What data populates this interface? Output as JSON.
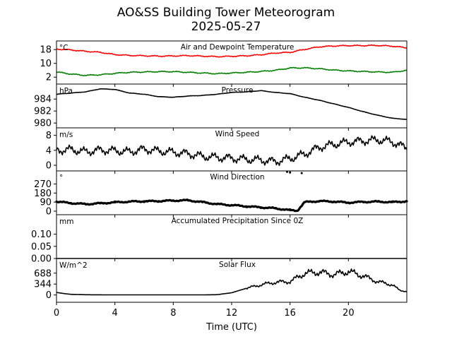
{
  "figure": {
    "title": "AO&SS Building Tower Meteorogram",
    "subtitle": "2025-05-27",
    "xlabel": "Time (UTC)"
  },
  "chart_data": [
    {
      "type": "line",
      "title": "Air and Dewpoint Temperature",
      "unit": "°C",
      "yticks": [
        2,
        10,
        18
      ],
      "ylim": [
        -2,
        23
      ],
      "xlim": [
        0,
        24
      ],
      "xticks": [
        0,
        4,
        8,
        12,
        16,
        20
      ],
      "series": [
        {
          "color": "#ff0000",
          "x": [
            0,
            1,
            2,
            3,
            4,
            5,
            6,
            7,
            8,
            9,
            10,
            11,
            12,
            13,
            14,
            15,
            16,
            17,
            18,
            19,
            20,
            21,
            22,
            23,
            24
          ],
          "values": [
            18.3,
            17.8,
            17.0,
            16.4,
            15.1,
            14.6,
            14.4,
            14.2,
            14.3,
            14.5,
            14.2,
            13.9,
            14.1,
            14.4,
            15.0,
            16.0,
            16.4,
            18.1,
            19.6,
            20.1,
            20.3,
            20.3,
            20.4,
            20.0,
            19.0
          ]
        },
        {
          "color": "#008000",
          "x": [
            0,
            1,
            2,
            3,
            4,
            5,
            6,
            7,
            8,
            9,
            10,
            11,
            12,
            13,
            14,
            15,
            16,
            17,
            18,
            19,
            20,
            21,
            22,
            23,
            24
          ],
          "values": [
            5.0,
            3.8,
            3.0,
            3.4,
            4.2,
            4.8,
            5.0,
            5.2,
            5.2,
            4.8,
            4.4,
            4.0,
            4.4,
            4.8,
            5.3,
            6.0,
            7.3,
            7.4,
            6.9,
            6.1,
            5.6,
            5.3,
            5.0,
            4.8,
            6.0
          ]
        }
      ]
    },
    {
      "type": "line",
      "title": "Pressure",
      "unit": "hPa",
      "yticks": [
        980,
        982,
        984
      ],
      "ylim": [
        979.2,
        986.5
      ],
      "xlim": [
        0,
        24
      ],
      "series": [
        {
          "color": "#000000",
          "x": [
            0,
            1,
            2,
            3,
            4,
            5,
            6,
            7,
            8,
            9,
            10,
            11,
            12,
            13,
            14,
            15,
            16,
            17,
            18,
            19,
            20,
            21,
            22,
            23,
            24
          ],
          "values": [
            984.8,
            985.0,
            985.2,
            985.7,
            985.6,
            985.0,
            984.8,
            984.4,
            984.3,
            984.5,
            984.6,
            984.8,
            985.1,
            985.2,
            985.4,
            985.1,
            984.9,
            984.3,
            983.8,
            983.2,
            982.6,
            981.9,
            981.3,
            980.8,
            980.6
          ]
        }
      ]
    },
    {
      "type": "line",
      "title": "Wind Speed",
      "unit": "m/s",
      "yticks": [
        0,
        4,
        8
      ],
      "ylim": [
        -1.5,
        10
      ],
      "xlim": [
        0,
        24
      ],
      "series": [
        {
          "color": "#000000",
          "x": [
            0,
            1,
            2,
            3,
            4,
            5,
            6,
            7,
            8,
            9,
            10,
            11,
            12,
            13,
            14,
            15,
            16,
            17,
            18,
            19,
            20,
            21,
            22,
            23,
            24
          ],
          "values": [
            4.0,
            4.2,
            3.6,
            4.1,
            3.9,
            3.6,
            4.3,
            3.8,
            3.5,
            3.1,
            2.4,
            2.1,
            1.9,
            1.6,
            1.4,
            1.0,
            1.8,
            3.0,
            4.8,
            5.6,
            6.2,
            6.5,
            6.8,
            6.3,
            4.5
          ]
        }
      ]
    },
    {
      "type": "scatter",
      "title": "Wind Direction",
      "unit": "°",
      "yticks": [
        0,
        90,
        180,
        270
      ],
      "ylim": [
        -35,
        400
      ],
      "xlim": [
        0,
        24
      ],
      "series": [
        {
          "color": "#000000",
          "x": [
            0,
            1,
            2,
            3,
            4,
            5,
            6,
            7,
            8,
            9,
            10,
            11,
            12,
            13,
            14,
            15,
            16,
            16.5,
            17,
            18,
            19,
            20,
            21,
            22,
            23,
            24
          ],
          "values": [
            95,
            80,
            70,
            78,
            88,
            95,
            98,
            100,
            105,
            108,
            90,
            70,
            60,
            48,
            38,
            28,
            10,
            5,
            90,
            100,
            95,
            85,
            92,
            95,
            90,
            98
          ]
        },
        {
          "color": "#000000",
          "x": [
            15.8,
            16.0,
            16.8
          ],
          "values": [
            390,
            385,
            378
          ]
        }
      ]
    },
    {
      "type": "line",
      "title": "Accumulated Precipitation Since 0Z",
      "unit": "mm",
      "yticks": [
        0.0,
        0.05,
        0.1
      ],
      "yticklabels": [
        "0.00",
        "0.05",
        "0.10"
      ],
      "ylim": [
        0,
        0.18
      ],
      "xlim": [
        0,
        24
      ],
      "series": [
        {
          "color": "#000000",
          "x": [
            0,
            24
          ],
          "values": [
            0,
            0
          ]
        }
      ]
    },
    {
      "type": "line",
      "title": "Solar Flux",
      "unit": "W/m^2",
      "yticks": [
        0,
        344,
        688
      ],
      "ylim": [
        -230,
        1150
      ],
      "xlim": [
        0,
        24
      ],
      "series": [
        {
          "color": "#000000",
          "x": [
            0,
            0.5,
            1,
            2,
            3,
            4,
            5,
            6,
            7,
            8,
            9,
            10,
            11,
            12,
            13,
            14,
            15,
            16,
            17,
            18,
            19,
            20,
            21,
            22,
            23,
            23.5,
            24
          ],
          "values": [
            80,
            45,
            20,
            8,
            5,
            3,
            3,
            3,
            3,
            3,
            3,
            3,
            10,
            70,
            210,
            320,
            400,
            420,
            680,
            720,
            640,
            740,
            600,
            420,
            320,
            150,
            110
          ]
        }
      ]
    }
  ]
}
